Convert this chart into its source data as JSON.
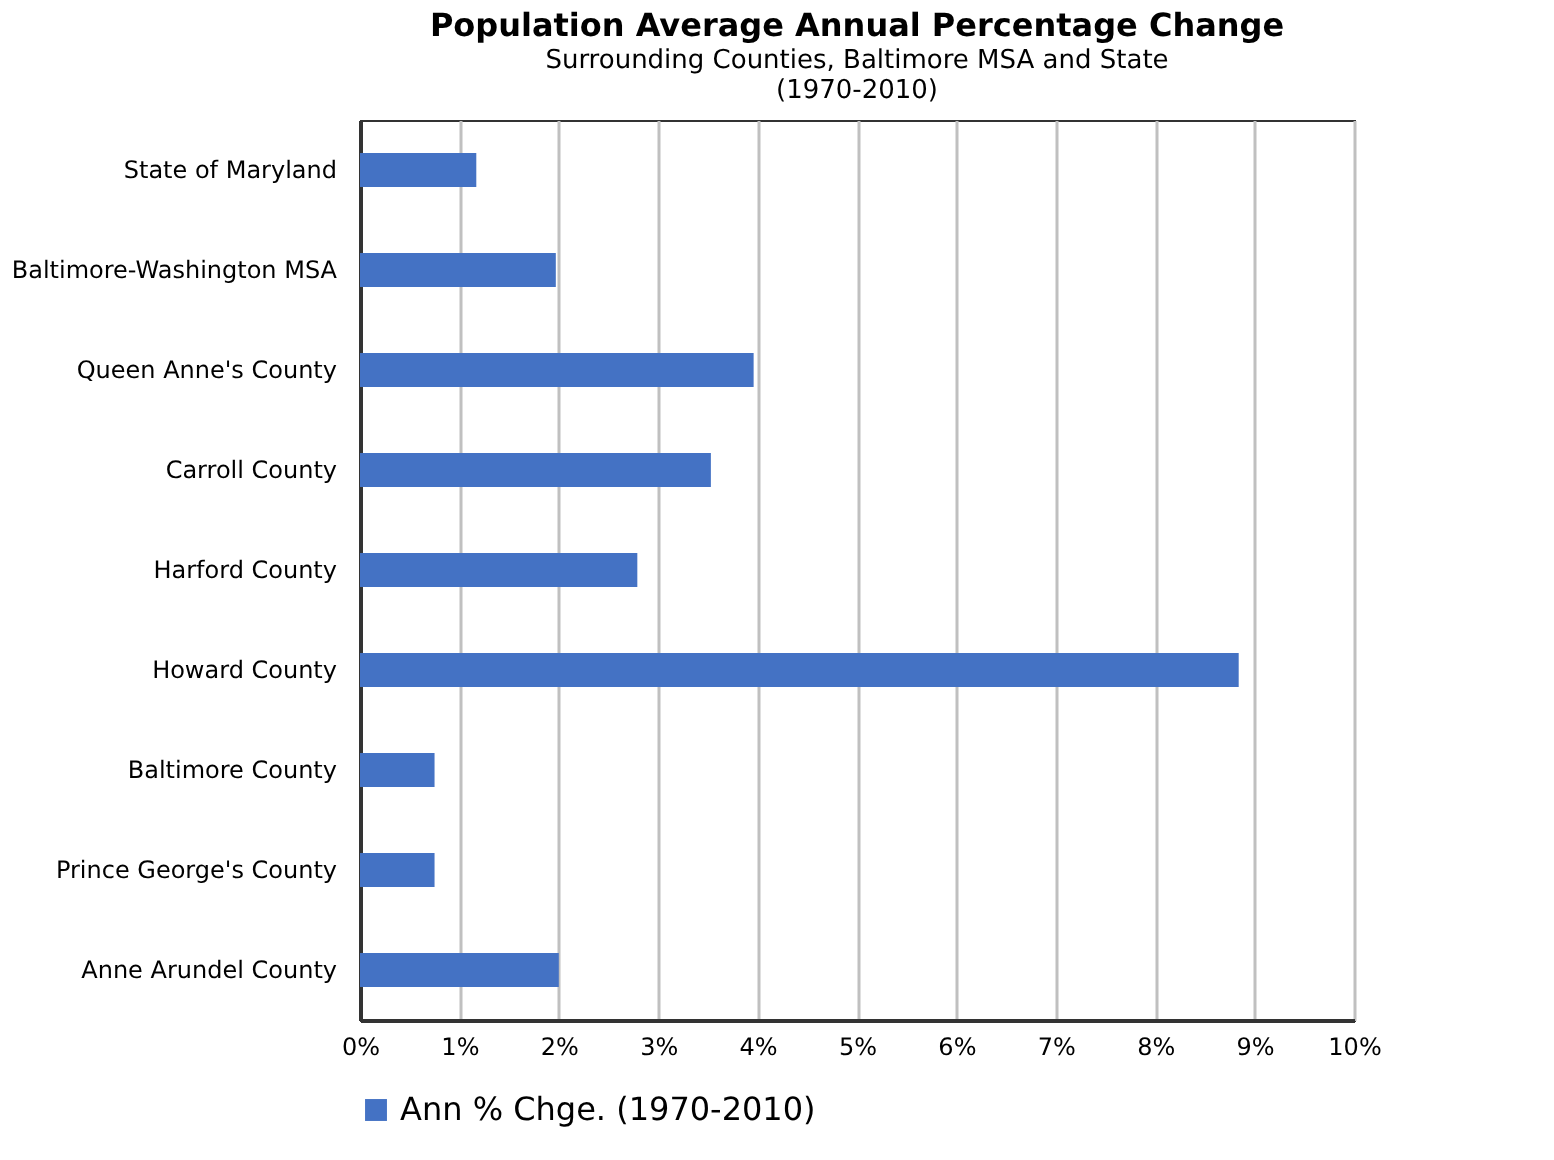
{
  "chart_data": {
    "type": "bar",
    "orientation": "horizontal",
    "title": "Population Average Annual Percentage Change",
    "subtitle": [
      "Surrounding  Counties, Baltimore MSA and State",
      "(1970-2010)"
    ],
    "categories": [
      "State of Maryland",
      "Baltimore-Washington MSA",
      "Queen Anne's County",
      "Carroll County",
      "Harford County",
      "Howard County",
      "Baltimore County",
      "Prince George's County",
      "Anne Arundel County"
    ],
    "series": [
      {
        "name": "Ann % Chge. (1970-2010)",
        "color": "#4472c4",
        "values": [
          1.17,
          1.97,
          3.96,
          3.53,
          2.79,
          8.84,
          0.75,
          0.75,
          2.0
        ]
      }
    ],
    "xlim": [
      0,
      10
    ],
    "xticks": [
      {
        "value": 0,
        "label": "0%"
      },
      {
        "value": 1,
        "label": "1%"
      },
      {
        "value": 2,
        "label": "2%"
      },
      {
        "value": 3,
        "label": "3%"
      },
      {
        "value": 4,
        "label": "4%"
      },
      {
        "value": 5,
        "label": "5%"
      },
      {
        "value": 6,
        "label": "6%"
      },
      {
        "value": 7,
        "label": "7%"
      },
      {
        "value": 8,
        "label": "8%"
      },
      {
        "value": 9,
        "label": "9%"
      },
      {
        "value": 10,
        "label": "10%"
      }
    ],
    "grid": "x",
    "legend": "bottom"
  }
}
